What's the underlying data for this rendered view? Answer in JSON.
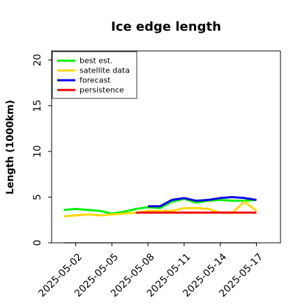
{
  "chart_data": {
    "type": "line",
    "title": "Ice edge length",
    "xlabel": "",
    "ylabel": "Length (1000km)",
    "ylim": [
      0,
      21
    ],
    "yticks": [
      0,
      5,
      10,
      15,
      20
    ],
    "xlim": [
      "2025-04-30",
      "2025-05-19"
    ],
    "xticks": [
      "2025-05-02",
      "2025-05-05",
      "2025-05-08",
      "2025-05-11",
      "2025-05-14",
      "2025-05-17"
    ],
    "highlight_tick": "2025-05-08",
    "highlight_color": "#228B22",
    "grid": false,
    "legend_position": "top-left",
    "series": [
      {
        "name": "best est.",
        "color": "#00ee00",
        "x": [
          "2025-05-01",
          "2025-05-02",
          "2025-05-03",
          "2025-05-04",
          "2025-05-05",
          "2025-05-06",
          "2025-05-07",
          "2025-05-08",
          "2025-05-09",
          "2025-05-10",
          "2025-05-11",
          "2025-05-12",
          "2025-05-13",
          "2025-05-14",
          "2025-05-15",
          "2025-05-16",
          "2025-05-17"
        ],
        "y": [
          3.6,
          3.7,
          3.6,
          3.5,
          3.2,
          3.4,
          3.7,
          3.9,
          3.8,
          4.5,
          4.8,
          4.4,
          4.6,
          4.7,
          4.6,
          4.6,
          4.7
        ]
      },
      {
        "name": "satellite data",
        "color": "#ffd700",
        "x": [
          "2025-05-01",
          "2025-05-02",
          "2025-05-03",
          "2025-05-04",
          "2025-05-05",
          "2025-05-06",
          "2025-05-07",
          "2025-05-08",
          "2025-05-09",
          "2025-05-10",
          "2025-05-11",
          "2025-05-12",
          "2025-05-13",
          "2025-05-14",
          "2025-05-15",
          "2025-05-16",
          "2025-05-17"
        ],
        "y": [
          2.9,
          3.0,
          3.1,
          3.0,
          3.1,
          3.2,
          3.3,
          3.5,
          3.5,
          3.5,
          3.8,
          3.8,
          3.7,
          3.3,
          3.3,
          4.5,
          3.5
        ]
      },
      {
        "name": "forecast",
        "color": "#0000ee",
        "x": [
          "2025-05-08",
          "2025-05-09",
          "2025-05-10",
          "2025-05-11",
          "2025-05-12",
          "2025-05-13",
          "2025-05-14",
          "2025-05-15",
          "2025-05-16",
          "2025-05-17"
        ],
        "y": [
          4.0,
          4.0,
          4.7,
          4.9,
          4.6,
          4.7,
          4.9,
          5.0,
          4.9,
          4.7
        ]
      },
      {
        "name": "persistence",
        "color": "#ee0000",
        "x": [
          "2025-05-07",
          "2025-05-08",
          "2025-05-09",
          "2025-05-10",
          "2025-05-11",
          "2025-05-12",
          "2025-05-13",
          "2025-05-14",
          "2025-05-15",
          "2025-05-16",
          "2025-05-17"
        ],
        "y": [
          3.3,
          3.3,
          3.3,
          3.3,
          3.3,
          3.3,
          3.3,
          3.3,
          3.3,
          3.3,
          3.3
        ]
      }
    ],
    "reference_line": {
      "color": "#808080",
      "x": [
        "2025-05-01",
        "2025-05-17"
      ],
      "y": [
        0,
        0
      ]
    }
  }
}
